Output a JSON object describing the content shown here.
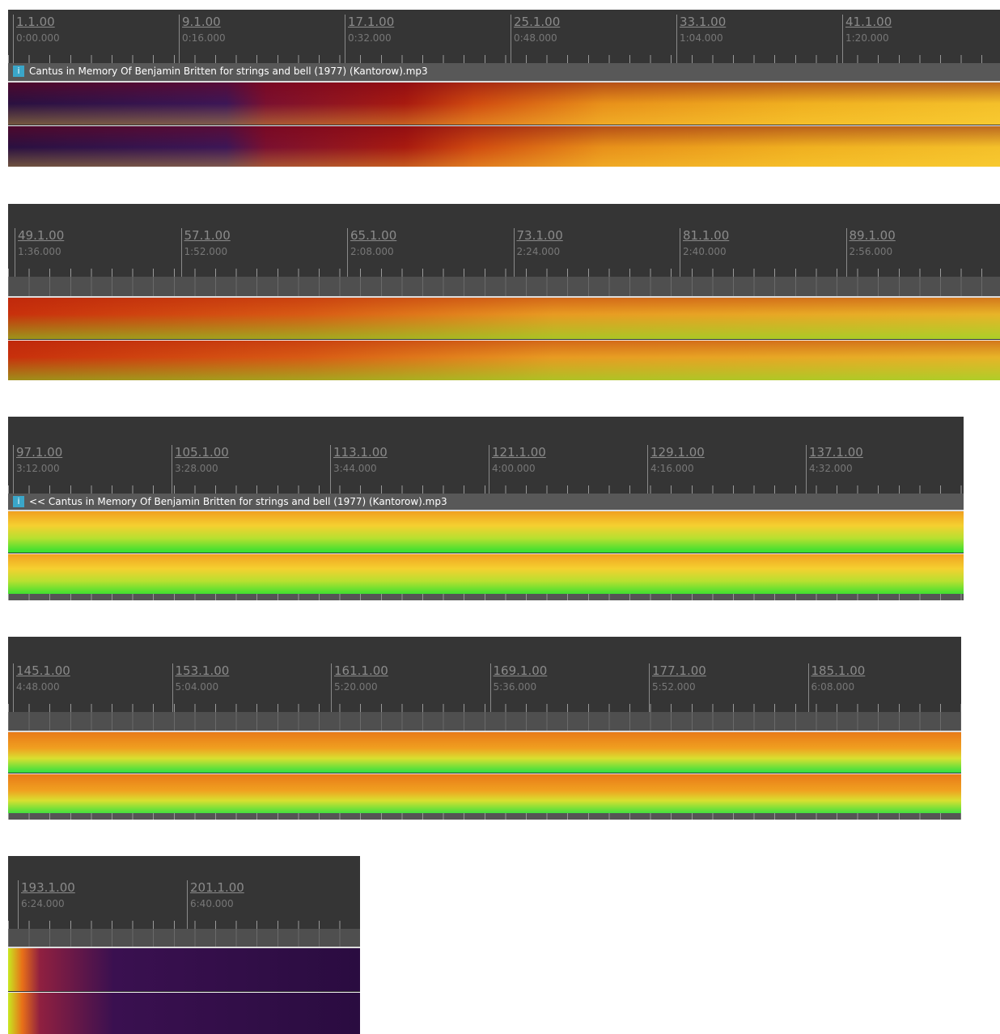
{
  "strips": [
    {
      "clip": "Cantus in Memory Of Benjamin Britten for strings and bell (1977) (Kantorow).mp3",
      "markers": [
        {
          "bar": "1.1.00",
          "time": "0:00.000"
        },
        {
          "bar": "9.1.00",
          "time": "0:16.000"
        },
        {
          "bar": "17.1.00",
          "time": "0:32.000"
        },
        {
          "bar": "25.1.00",
          "time": "0:48.000"
        },
        {
          "bar": "33.1.00",
          "time": "1:04.000"
        },
        {
          "bar": "41.1.00",
          "time": "1:20.000"
        }
      ]
    },
    {
      "markers": [
        {
          "bar": "49.1.00",
          "time": "1:36.000"
        },
        {
          "bar": "57.1.00",
          "time": "1:52.000"
        },
        {
          "bar": "65.1.00",
          "time": "2:08.000"
        },
        {
          "bar": "73.1.00",
          "time": "2:24.000"
        },
        {
          "bar": "81.1.00",
          "time": "2:40.000"
        },
        {
          "bar": "89.1.00",
          "time": "2:56.000"
        }
      ]
    },
    {
      "clip": "<< Cantus in Memory Of Benjamin Britten for strings and bell (1977) (Kantorow).mp3",
      "markers": [
        {
          "bar": "97.1.00",
          "time": "3:12.000"
        },
        {
          "bar": "105.1.00",
          "time": "3:28.000"
        },
        {
          "bar": "113.1.00",
          "time": "3:44.000"
        },
        {
          "bar": "121.1.00",
          "time": "4:00.000"
        },
        {
          "bar": "129.1.00",
          "time": "4:16.000"
        },
        {
          "bar": "137.1.00",
          "time": "4:32.000"
        }
      ]
    },
    {
      "markers": [
        {
          "bar": "145.1.00",
          "time": "4:48.000"
        },
        {
          "bar": "153.1.00",
          "time": "5:04.000"
        },
        {
          "bar": "161.1.00",
          "time": "5:20.000"
        },
        {
          "bar": "169.1.00",
          "time": "5:36.000"
        },
        {
          "bar": "177.1.00",
          "time": "5:52.000"
        },
        {
          "bar": "185.1.00",
          "time": "6:08.000"
        }
      ]
    },
    {
      "markers": [
        {
          "bar": "193.1.00",
          "time": "6:24.000"
        },
        {
          "bar": "201.1.00",
          "time": "6:40.000"
        }
      ]
    }
  ]
}
